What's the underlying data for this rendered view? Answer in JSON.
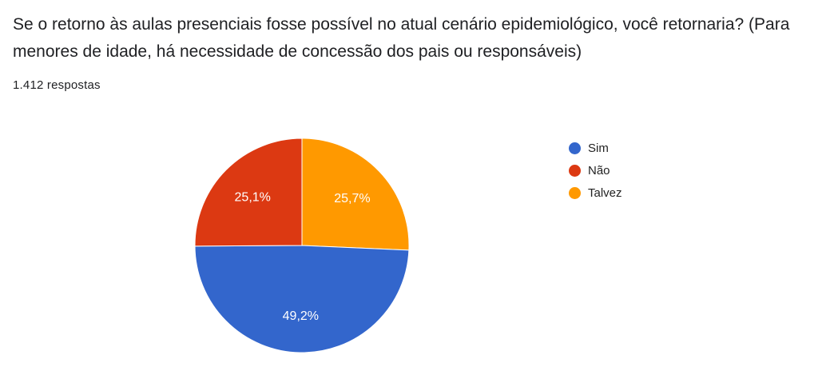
{
  "question": {
    "title": "Se o retorno às aulas presenciais fosse possível no atual cenário epidemiológico, você retornaria? (Para menores de idade, há necessidade de concessão dos pais ou responsáveis)",
    "responses": "1.412 respostas"
  },
  "chart_data": {
    "type": "pie",
    "title": "",
    "slices": [
      {
        "name": "Sim",
        "value": 49.2,
        "label": "49,2%",
        "color": "#3366cc"
      },
      {
        "name": "Não",
        "value": 25.1,
        "label": "25,1%",
        "color": "#dc3912"
      },
      {
        "name": "Talvez",
        "value": 25.7,
        "label": "25,7%",
        "color": "#ff9900"
      }
    ],
    "legend_position": "right"
  }
}
